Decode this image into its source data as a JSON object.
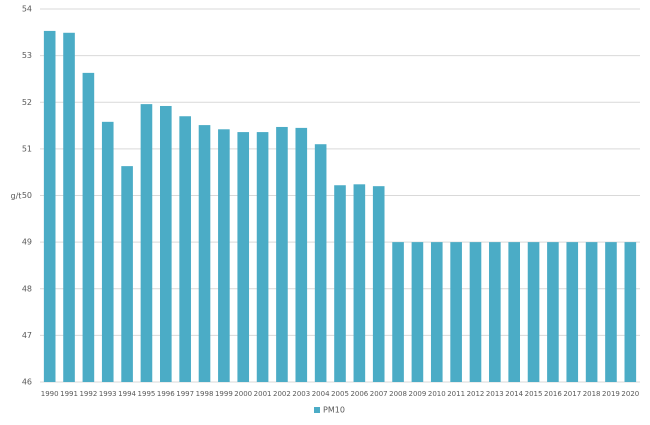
{
  "chart_data": {
    "type": "bar",
    "y_label": "g/t",
    "categories": [
      "1990",
      "1991",
      "1992",
      "1993",
      "1994",
      "1995",
      "1996",
      "1997",
      "1998",
      "1999",
      "2000",
      "2001",
      "2002",
      "2003",
      "2004",
      "2005",
      "2006",
      "2007",
      "2008",
      "2009",
      "2010",
      "2011",
      "2012",
      "2013",
      "2014",
      "2015",
      "2016",
      "2017",
      "2018",
      "2019",
      "2020"
    ],
    "series": [
      {
        "name": "PM10",
        "color": "#4bacc6",
        "values": [
          53.53,
          53.49,
          52.63,
          51.58,
          50.63,
          51.96,
          51.92,
          51.7,
          51.51,
          51.42,
          51.36,
          51.36,
          51.47,
          51.45,
          51.1,
          50.22,
          50.24,
          50.2,
          49,
          49,
          49,
          49,
          49,
          49,
          49,
          49,
          49,
          49,
          49,
          49,
          49
        ]
      }
    ],
    "ylim": [
      46,
      54
    ],
    "yticks": [
      46,
      47,
      48,
      49,
      50,
      51,
      52,
      53,
      54
    ],
    "grid": true,
    "legend": "bottom"
  }
}
